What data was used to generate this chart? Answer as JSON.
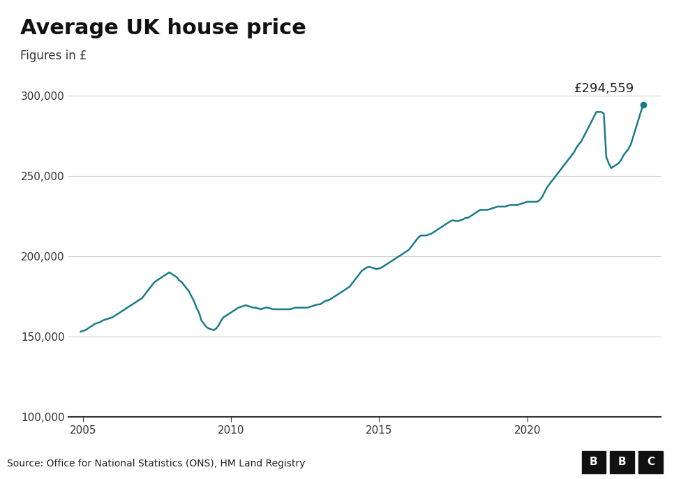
{
  "title": "Average UK house price",
  "subtitle": "Figures in £",
  "source": "Source: Office for National Statistics (ONS), HM Land Registry",
  "line_color": "#1a7a8a",
  "background_color": "#ffffff",
  "footer_bg": "#e0e0e0",
  "annotation": "£294,559",
  "annotation_value": 294559,
  "ylim": [
    100000,
    315000
  ],
  "yticks": [
    100000,
    150000,
    200000,
    250000,
    300000
  ],
  "xlim_start": 2004.5,
  "xlim_end": 2024.5,
  "xticks": [
    2005,
    2010,
    2015,
    2020
  ],
  "data": [
    [
      2004.917,
      153000
    ],
    [
      2005.0,
      153500
    ],
    [
      2005.083,
      154000
    ],
    [
      2005.167,
      155000
    ],
    [
      2005.25,
      156000
    ],
    [
      2005.333,
      157000
    ],
    [
      2005.417,
      158000
    ],
    [
      2005.5,
      158500
    ],
    [
      2005.583,
      159000
    ],
    [
      2005.667,
      160000
    ],
    [
      2005.75,
      160500
    ],
    [
      2005.833,
      161000
    ],
    [
      2005.917,
      161500
    ],
    [
      2006.0,
      162000
    ],
    [
      2006.083,
      163000
    ],
    [
      2006.167,
      164000
    ],
    [
      2006.25,
      165000
    ],
    [
      2006.333,
      166000
    ],
    [
      2006.417,
      167000
    ],
    [
      2006.5,
      168000
    ],
    [
      2006.583,
      169000
    ],
    [
      2006.667,
      170000
    ],
    [
      2006.75,
      171000
    ],
    [
      2006.833,
      172000
    ],
    [
      2006.917,
      173000
    ],
    [
      2007.0,
      174000
    ],
    [
      2007.083,
      176000
    ],
    [
      2007.167,
      178000
    ],
    [
      2007.25,
      180000
    ],
    [
      2007.333,
      182000
    ],
    [
      2007.417,
      184000
    ],
    [
      2007.5,
      185000
    ],
    [
      2007.583,
      186000
    ],
    [
      2007.667,
      187000
    ],
    [
      2007.75,
      188000
    ],
    [
      2007.833,
      189000
    ],
    [
      2007.917,
      190000
    ],
    [
      2008.0,
      189000
    ],
    [
      2008.083,
      188000
    ],
    [
      2008.167,
      187000
    ],
    [
      2008.25,
      185000
    ],
    [
      2008.333,
      184000
    ],
    [
      2008.417,
      182000
    ],
    [
      2008.5,
      180000
    ],
    [
      2008.583,
      178000
    ],
    [
      2008.667,
      175000
    ],
    [
      2008.75,
      172000
    ],
    [
      2008.833,
      168000
    ],
    [
      2008.917,
      165000
    ],
    [
      2009.0,
      160000
    ],
    [
      2009.083,
      158000
    ],
    [
      2009.167,
      156000
    ],
    [
      2009.25,
      155000
    ],
    [
      2009.333,
      154500
    ],
    [
      2009.417,
      154000
    ],
    [
      2009.5,
      155000
    ],
    [
      2009.583,
      157000
    ],
    [
      2009.667,
      160000
    ],
    [
      2009.75,
      162000
    ],
    [
      2009.833,
      163000
    ],
    [
      2009.917,
      164000
    ],
    [
      2010.0,
      165000
    ],
    [
      2010.083,
      166000
    ],
    [
      2010.167,
      167000
    ],
    [
      2010.25,
      168000
    ],
    [
      2010.333,
      168500
    ],
    [
      2010.417,
      169000
    ],
    [
      2010.5,
      169500
    ],
    [
      2010.583,
      169000
    ],
    [
      2010.667,
      168500
    ],
    [
      2010.75,
      168000
    ],
    [
      2010.833,
      168000
    ],
    [
      2010.917,
      167500
    ],
    [
      2011.0,
      167000
    ],
    [
      2011.083,
      167500
    ],
    [
      2011.167,
      168000
    ],
    [
      2011.25,
      168000
    ],
    [
      2011.333,
      167500
    ],
    [
      2011.417,
      167000
    ],
    [
      2011.5,
      167000
    ],
    [
      2011.583,
      167000
    ],
    [
      2011.667,
      167000
    ],
    [
      2011.75,
      167000
    ],
    [
      2011.833,
      167000
    ],
    [
      2011.917,
      167000
    ],
    [
      2012.0,
      167000
    ],
    [
      2012.083,
      167500
    ],
    [
      2012.167,
      168000
    ],
    [
      2012.25,
      168000
    ],
    [
      2012.333,
      168000
    ],
    [
      2012.417,
      168000
    ],
    [
      2012.5,
      168000
    ],
    [
      2012.583,
      168000
    ],
    [
      2012.667,
      168500
    ],
    [
      2012.75,
      169000
    ],
    [
      2012.833,
      169500
    ],
    [
      2012.917,
      170000
    ],
    [
      2013.0,
      170000
    ],
    [
      2013.083,
      171000
    ],
    [
      2013.167,
      172000
    ],
    [
      2013.25,
      172500
    ],
    [
      2013.333,
      173000
    ],
    [
      2013.417,
      174000
    ],
    [
      2013.5,
      175000
    ],
    [
      2013.583,
      176000
    ],
    [
      2013.667,
      177000
    ],
    [
      2013.75,
      178000
    ],
    [
      2013.833,
      179000
    ],
    [
      2013.917,
      180000
    ],
    [
      2014.0,
      181000
    ],
    [
      2014.083,
      183000
    ],
    [
      2014.167,
      185000
    ],
    [
      2014.25,
      187000
    ],
    [
      2014.333,
      189000
    ],
    [
      2014.417,
      191000
    ],
    [
      2014.5,
      192000
    ],
    [
      2014.583,
      193000
    ],
    [
      2014.667,
      193500
    ],
    [
      2014.75,
      193000
    ],
    [
      2014.833,
      192500
    ],
    [
      2014.917,
      192000
    ],
    [
      2015.0,
      192500
    ],
    [
      2015.083,
      193000
    ],
    [
      2015.167,
      194000
    ],
    [
      2015.25,
      195000
    ],
    [
      2015.333,
      196000
    ],
    [
      2015.417,
      197000
    ],
    [
      2015.5,
      198000
    ],
    [
      2015.583,
      199000
    ],
    [
      2015.667,
      200000
    ],
    [
      2015.75,
      201000
    ],
    [
      2015.833,
      202000
    ],
    [
      2015.917,
      203000
    ],
    [
      2016.0,
      204000
    ],
    [
      2016.083,
      206000
    ],
    [
      2016.167,
      208000
    ],
    [
      2016.25,
      210000
    ],
    [
      2016.333,
      212000
    ],
    [
      2016.417,
      213000
    ],
    [
      2016.5,
      213000
    ],
    [
      2016.583,
      213000
    ],
    [
      2016.667,
      213500
    ],
    [
      2016.75,
      214000
    ],
    [
      2016.833,
      215000
    ],
    [
      2016.917,
      216000
    ],
    [
      2017.0,
      217000
    ],
    [
      2017.083,
      218000
    ],
    [
      2017.167,
      219000
    ],
    [
      2017.25,
      220000
    ],
    [
      2017.333,
      221000
    ],
    [
      2017.417,
      222000
    ],
    [
      2017.5,
      222500
    ],
    [
      2017.583,
      222000
    ],
    [
      2017.667,
      222000
    ],
    [
      2017.75,
      222500
    ],
    [
      2017.833,
      223000
    ],
    [
      2017.917,
      224000
    ],
    [
      2018.0,
      224000
    ],
    [
      2018.083,
      225000
    ],
    [
      2018.167,
      226000
    ],
    [
      2018.25,
      227000
    ],
    [
      2018.333,
      228000
    ],
    [
      2018.417,
      229000
    ],
    [
      2018.5,
      229000
    ],
    [
      2018.583,
      229000
    ],
    [
      2018.667,
      229000
    ],
    [
      2018.75,
      229500
    ],
    [
      2018.833,
      230000
    ],
    [
      2018.917,
      230500
    ],
    [
      2019.0,
      231000
    ],
    [
      2019.083,
      231000
    ],
    [
      2019.167,
      231000
    ],
    [
      2019.25,
      231000
    ],
    [
      2019.333,
      231500
    ],
    [
      2019.417,
      232000
    ],
    [
      2019.5,
      232000
    ],
    [
      2019.583,
      232000
    ],
    [
      2019.667,
      232000
    ],
    [
      2019.75,
      232500
    ],
    [
      2019.833,
      233000
    ],
    [
      2019.917,
      233500
    ],
    [
      2020.0,
      234000
    ],
    [
      2020.083,
      234000
    ],
    [
      2020.167,
      234000
    ],
    [
      2020.25,
      234000
    ],
    [
      2020.333,
      234000
    ],
    [
      2020.417,
      235000
    ],
    [
      2020.5,
      237000
    ],
    [
      2020.583,
      240000
    ],
    [
      2020.667,
      243000
    ],
    [
      2020.75,
      245000
    ],
    [
      2020.833,
      247000
    ],
    [
      2020.917,
      249000
    ],
    [
      2021.0,
      251000
    ],
    [
      2021.083,
      253000
    ],
    [
      2021.167,
      255000
    ],
    [
      2021.25,
      257000
    ],
    [
      2021.333,
      259000
    ],
    [
      2021.417,
      261000
    ],
    [
      2021.5,
      263000
    ],
    [
      2021.583,
      265000
    ],
    [
      2021.667,
      268000
    ],
    [
      2021.75,
      270000
    ],
    [
      2021.833,
      272000
    ],
    [
      2021.917,
      275000
    ],
    [
      2022.0,
      278000
    ],
    [
      2022.083,
      281000
    ],
    [
      2022.167,
      284000
    ],
    [
      2022.25,
      287000
    ],
    [
      2022.333,
      290000
    ],
    [
      2022.417,
      290000
    ],
    [
      2022.5,
      290000
    ],
    [
      2022.583,
      289000
    ],
    [
      2022.667,
      262000
    ],
    [
      2022.75,
      258000
    ],
    [
      2022.833,
      255000
    ],
    [
      2022.917,
      256000
    ],
    [
      2023.0,
      257000
    ],
    [
      2023.083,
      258000
    ],
    [
      2023.167,
      260000
    ],
    [
      2023.25,
      263000
    ],
    [
      2023.333,
      265000
    ],
    [
      2023.417,
      267000
    ],
    [
      2023.5,
      270000
    ],
    [
      2023.583,
      275000
    ],
    [
      2023.667,
      280000
    ],
    [
      2023.75,
      285000
    ],
    [
      2023.833,
      290000
    ],
    [
      2023.917,
      294559
    ]
  ]
}
